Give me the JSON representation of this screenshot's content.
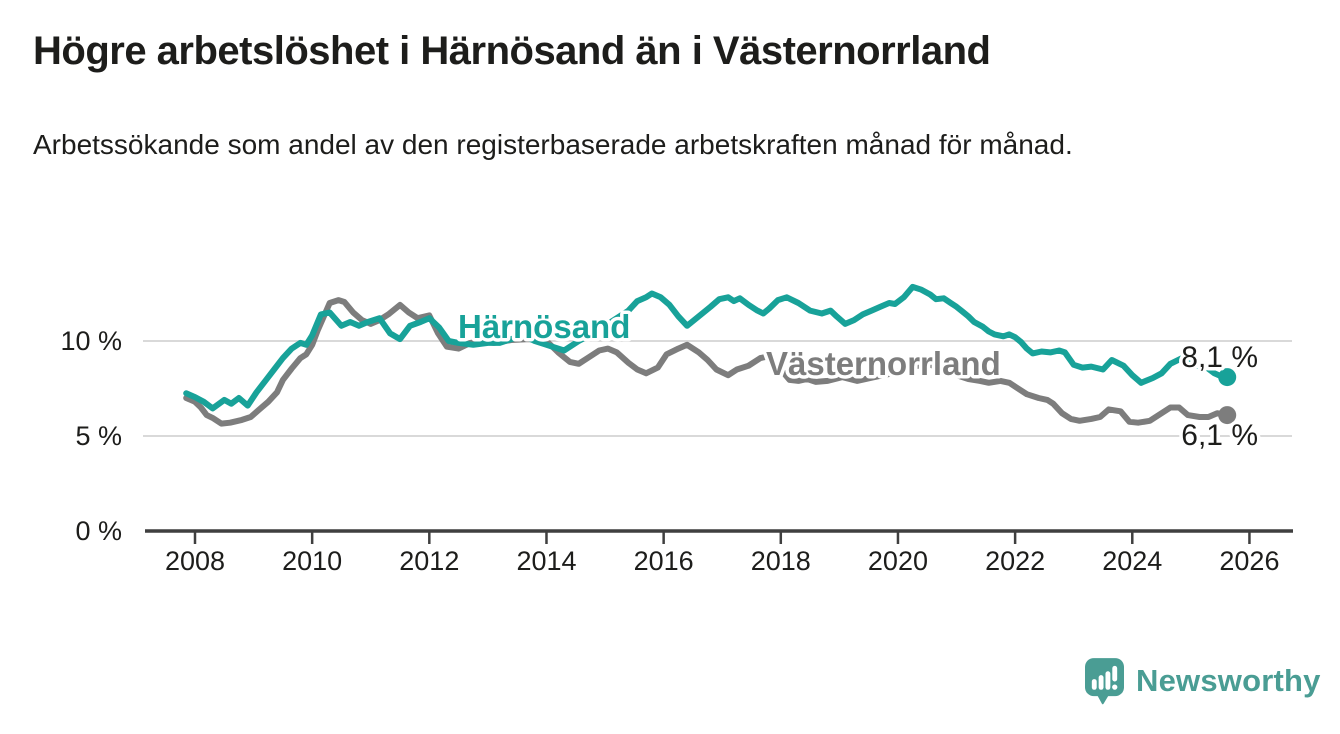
{
  "header": {
    "title": "Högre arbetslöshet i Härnösand än i Västernorrland",
    "subtitle": "Arbetssökande som andel av den registerbaserade arbetskraften månad för månad."
  },
  "footer": {
    "brand": "Newsworthy",
    "logo_icon": "bar-chart-speech-bubble-icon"
  },
  "colors": {
    "harnosand": "#18a299",
    "vasternorrland": "#7d7d7d",
    "text": "#1d1d1b",
    "gridline": "#d9d9d9",
    "axis": "#3f3f3f",
    "logo": "#4a9d94",
    "background": "#ffffff"
  },
  "chart_data": {
    "type": "line",
    "title": "Högre arbetslöshet i Härnösand än i Västernorrland",
    "xlabel": "",
    "ylabel": "",
    "unit": "%",
    "xlim": [
      2007.9,
      2026.8
    ],
    "ylim": [
      0,
      13.5
    ],
    "grid": "horizontal-light",
    "legend": "inline-labels-on-lines",
    "x_ticks": [
      2008,
      2010,
      2012,
      2014,
      2016,
      2018,
      2020,
      2022,
      2024,
      2026
    ],
    "y_ticks": [
      {
        "value": 0,
        "label": "0 %"
      },
      {
        "value": 5,
        "label": "5 %"
      },
      {
        "value": 10,
        "label": "10 %"
      }
    ],
    "series": [
      {
        "id": "harnosand",
        "name": "Härnösand",
        "color": "#18a299",
        "end_value": 8.1,
        "end_label": "8,1 %",
        "points": [
          [
            2007.85,
            7.25
          ],
          [
            2008,
            7.05
          ],
          [
            2008.15,
            6.8
          ],
          [
            2008.3,
            6.45
          ],
          [
            2008.5,
            6.9
          ],
          [
            2008.62,
            6.7
          ],
          [
            2008.75,
            7
          ],
          [
            2008.9,
            6.6
          ],
          [
            2009.05,
            7.3
          ],
          [
            2009.2,
            7.9
          ],
          [
            2009.35,
            8.5
          ],
          [
            2009.5,
            9.1
          ],
          [
            2009.65,
            9.6
          ],
          [
            2009.8,
            9.9
          ],
          [
            2009.9,
            9.8
          ],
          [
            2010,
            10.3
          ],
          [
            2010.15,
            11.4
          ],
          [
            2010.3,
            11.5
          ],
          [
            2010.5,
            10.8
          ],
          [
            2010.65,
            11
          ],
          [
            2010.8,
            10.8
          ],
          [
            2010.95,
            11
          ],
          [
            2011.15,
            11.2
          ],
          [
            2011.33,
            10.4
          ],
          [
            2011.5,
            10.1
          ],
          [
            2011.67,
            10.8
          ],
          [
            2011.85,
            11
          ],
          [
            2012,
            11.2
          ],
          [
            2012.17,
            10.7
          ],
          [
            2012.33,
            10
          ],
          [
            2012.5,
            9.9
          ],
          [
            2012.75,
            9.8
          ],
          [
            2013,
            9.9
          ],
          [
            2013.2,
            9.9
          ],
          [
            2013.4,
            10.1
          ],
          [
            2013.6,
            10.3
          ],
          [
            2013.8,
            10
          ],
          [
            2014,
            9.8
          ],
          [
            2014.3,
            9.5
          ],
          [
            2014.55,
            10
          ],
          [
            2014.8,
            10.4
          ],
          [
            2015,
            10.8
          ],
          [
            2015.2,
            11.2
          ],
          [
            2015.4,
            11.6
          ],
          [
            2015.55,
            12.1
          ],
          [
            2015.7,
            12.3
          ],
          [
            2015.8,
            12.5
          ],
          [
            2015.95,
            12.3
          ],
          [
            2016.1,
            11.9
          ],
          [
            2016.25,
            11.3
          ],
          [
            2016.4,
            10.8
          ],
          [
            2016.6,
            11.3
          ],
          [
            2016.8,
            11.8
          ],
          [
            2016.95,
            12.2
          ],
          [
            2017.1,
            12.3
          ],
          [
            2017.2,
            12.1
          ],
          [
            2017.3,
            12.25
          ],
          [
            2017.45,
            11.9
          ],
          [
            2017.6,
            11.6
          ],
          [
            2017.7,
            11.45
          ],
          [
            2017.8,
            11.7
          ],
          [
            2017.95,
            12.15
          ],
          [
            2018.1,
            12.3
          ],
          [
            2018.3,
            12
          ],
          [
            2018.5,
            11.6
          ],
          [
            2018.7,
            11.45
          ],
          [
            2018.85,
            11.6
          ],
          [
            2018.95,
            11.3
          ],
          [
            2019.1,
            10.9
          ],
          [
            2019.25,
            11.1
          ],
          [
            2019.4,
            11.4
          ],
          [
            2019.55,
            11.6
          ],
          [
            2019.7,
            11.8
          ],
          [
            2019.85,
            12
          ],
          [
            2019.95,
            11.95
          ],
          [
            2020.1,
            12.3
          ],
          [
            2020.25,
            12.85
          ],
          [
            2020.4,
            12.7
          ],
          [
            2020.55,
            12.45
          ],
          [
            2020.65,
            12.2
          ],
          [
            2020.78,
            12.25
          ],
          [
            2020.9,
            12
          ],
          [
            2021,
            11.8
          ],
          [
            2021.1,
            11.55
          ],
          [
            2021.2,
            11.3
          ],
          [
            2021.3,
            11
          ],
          [
            2021.45,
            10.75
          ],
          [
            2021.55,
            10.5
          ],
          [
            2021.65,
            10.35
          ],
          [
            2021.8,
            10.25
          ],
          [
            2021.9,
            10.35
          ],
          [
            2022,
            10.2
          ],
          [
            2022.1,
            9.95
          ],
          [
            2022.2,
            9.6
          ],
          [
            2022.3,
            9.35
          ],
          [
            2022.45,
            9.45
          ],
          [
            2022.6,
            9.4
          ],
          [
            2022.75,
            9.5
          ],
          [
            2022.85,
            9.4
          ],
          [
            2023,
            8.75
          ],
          [
            2023.15,
            8.6
          ],
          [
            2023.3,
            8.65
          ],
          [
            2023.5,
            8.5
          ],
          [
            2023.65,
            9
          ],
          [
            2023.85,
            8.7
          ],
          [
            2024,
            8.2
          ],
          [
            2024.15,
            7.8
          ],
          [
            2024.35,
            8.05
          ],
          [
            2024.5,
            8.3
          ],
          [
            2024.65,
            8.8
          ],
          [
            2024.85,
            9.1
          ],
          [
            2025,
            9
          ],
          [
            2025.1,
            8.7
          ],
          [
            2025.25,
            8.65
          ],
          [
            2025.4,
            8.3
          ],
          [
            2025.55,
            8.1
          ],
          [
            2025.62,
            8.1
          ]
        ]
      },
      {
        "id": "vasternorrland",
        "name": "Västernorrland",
        "color": "#7d7d7d",
        "end_value": 6.1,
        "end_label": "6,1 %",
        "points": [
          [
            2007.85,
            7
          ],
          [
            2008,
            6.8
          ],
          [
            2008.1,
            6.5
          ],
          [
            2008.2,
            6.1
          ],
          [
            2008.3,
            5.95
          ],
          [
            2008.45,
            5.65
          ],
          [
            2008.6,
            5.7
          ],
          [
            2008.8,
            5.85
          ],
          [
            2008.95,
            6
          ],
          [
            2009.1,
            6.4
          ],
          [
            2009.25,
            6.8
          ],
          [
            2009.4,
            7.3
          ],
          [
            2009.5,
            7.95
          ],
          [
            2009.65,
            8.55
          ],
          [
            2009.8,
            9.1
          ],
          [
            2009.9,
            9.3
          ],
          [
            2010,
            9.8
          ],
          [
            2010.1,
            10.6
          ],
          [
            2010.2,
            11.3
          ],
          [
            2010.3,
            12
          ],
          [
            2010.45,
            12.15
          ],
          [
            2010.55,
            12.05
          ],
          [
            2010.7,
            11.5
          ],
          [
            2010.85,
            11.1
          ],
          [
            2011,
            10.9
          ],
          [
            2011.15,
            11.1
          ],
          [
            2011.3,
            11.4
          ],
          [
            2011.5,
            11.9
          ],
          [
            2011.65,
            11.5
          ],
          [
            2011.8,
            11.2
          ],
          [
            2012,
            11.35
          ],
          [
            2012.15,
            10.4
          ],
          [
            2012.3,
            9.7
          ],
          [
            2012.5,
            9.6
          ],
          [
            2012.7,
            9.9
          ],
          [
            2012.9,
            10
          ],
          [
            2013.1,
            9.9
          ],
          [
            2013.4,
            10.05
          ],
          [
            2013.7,
            10.1
          ],
          [
            2014,
            10
          ],
          [
            2014.2,
            9.4
          ],
          [
            2014.4,
            8.9
          ],
          [
            2014.55,
            8.8
          ],
          [
            2014.7,
            9.1
          ],
          [
            2014.9,
            9.5
          ],
          [
            2015.05,
            9.6
          ],
          [
            2015.2,
            9.4
          ],
          [
            2015.4,
            8.85
          ],
          [
            2015.55,
            8.5
          ],
          [
            2015.7,
            8.3
          ],
          [
            2015.9,
            8.6
          ],
          [
            2016.05,
            9.3
          ],
          [
            2016.25,
            9.6
          ],
          [
            2016.4,
            9.8
          ],
          [
            2016.6,
            9.4
          ],
          [
            2016.75,
            9
          ],
          [
            2016.9,
            8.5
          ],
          [
            2017.1,
            8.2
          ],
          [
            2017.25,
            8.5
          ],
          [
            2017.45,
            8.7
          ],
          [
            2017.65,
            9.1
          ],
          [
            2017.8,
            9.2
          ],
          [
            2018,
            8.5
          ],
          [
            2018.15,
            7.95
          ],
          [
            2018.3,
            7.9
          ],
          [
            2018.45,
            8
          ],
          [
            2018.6,
            7.85
          ],
          [
            2018.8,
            7.9
          ],
          [
            2019.05,
            8.1
          ],
          [
            2019.3,
            7.9
          ],
          [
            2019.6,
            8.1
          ],
          [
            2019.9,
            8.3
          ],
          [
            2020.2,
            8.6
          ],
          [
            2020.5,
            8.8
          ],
          [
            2020.8,
            8.5
          ],
          [
            2021,
            8.2
          ],
          [
            2021.2,
            8
          ],
          [
            2021.4,
            7.9
          ],
          [
            2021.55,
            7.8
          ],
          [
            2021.75,
            7.9
          ],
          [
            2021.9,
            7.8
          ],
          [
            2022.05,
            7.5
          ],
          [
            2022.2,
            7.2
          ],
          [
            2022.4,
            7
          ],
          [
            2022.55,
            6.9
          ],
          [
            2022.65,
            6.7
          ],
          [
            2022.8,
            6.2
          ],
          [
            2022.95,
            5.9
          ],
          [
            2023.1,
            5.8
          ],
          [
            2023.3,
            5.9
          ],
          [
            2023.45,
            6
          ],
          [
            2023.6,
            6.4
          ],
          [
            2023.8,
            6.3
          ],
          [
            2023.95,
            5.75
          ],
          [
            2024.1,
            5.7
          ],
          [
            2024.3,
            5.8
          ],
          [
            2024.45,
            6.1
          ],
          [
            2024.65,
            6.5
          ],
          [
            2024.8,
            6.5
          ],
          [
            2024.95,
            6.1
          ],
          [
            2025.15,
            6
          ],
          [
            2025.3,
            6
          ],
          [
            2025.45,
            6.2
          ],
          [
            2025.62,
            6.1
          ]
        ]
      }
    ]
  }
}
